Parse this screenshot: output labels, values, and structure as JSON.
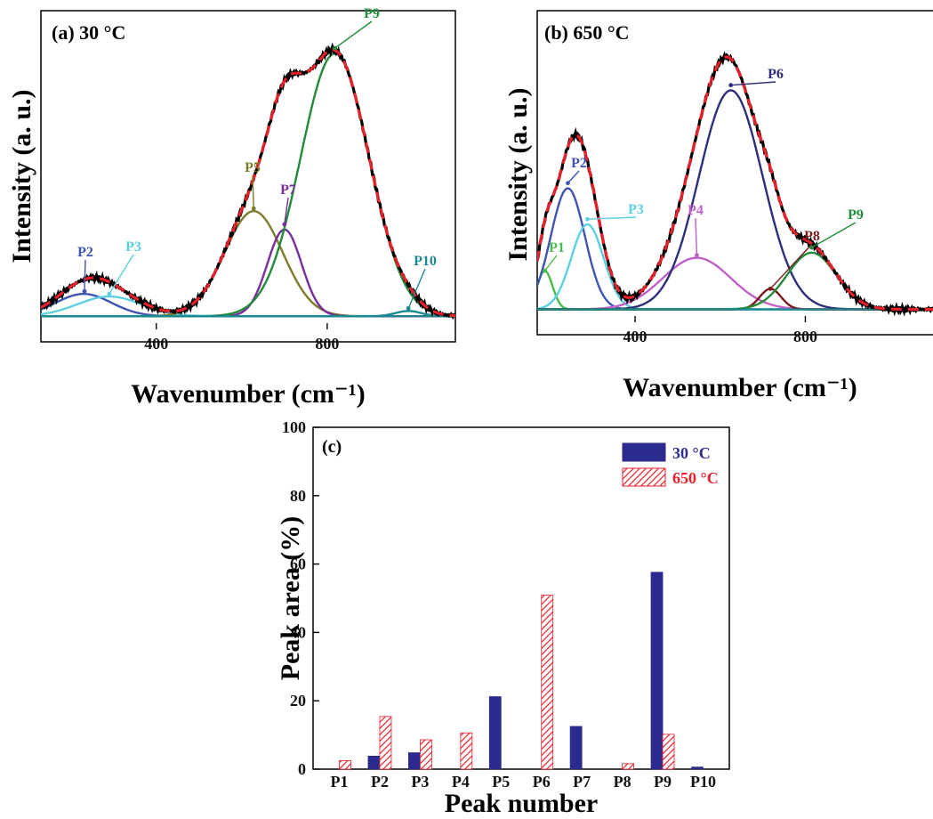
{
  "chart_data": [
    {
      "type": "line",
      "panel_label": "(a) 30 °C",
      "xlabel": "Wavenumber (cm⁻¹)",
      "ylabel": "Intensity (a. u.)",
      "xlim": [
        130,
        1100
      ],
      "ylim": [
        -0.05,
        1.0
      ],
      "xticks": [
        400,
        800
      ],
      "fit_color": "#e8202a",
      "data_color": "#000000",
      "peaks": [
        {
          "name": "P2",
          "center": 230,
          "height": 0.085,
          "width": 65,
          "color": "#3f55b5"
        },
        {
          "name": "P3",
          "center": 290,
          "height": 0.075,
          "width": 75,
          "color": "#5ccfe0"
        },
        {
          "name": "P5",
          "center": 628,
          "height": 0.4,
          "width": 68,
          "color": "#7d7a2a"
        },
        {
          "name": "P7",
          "center": 700,
          "height": 0.33,
          "width": 40,
          "color": "#7a2d9c"
        },
        {
          "name": "P9",
          "center": 818,
          "height": 1.0,
          "width": 80,
          "color": "#228b3a"
        },
        {
          "name": "P10",
          "center": 990,
          "height": 0.02,
          "width": 30,
          "color": "#1a8a90"
        }
      ]
    },
    {
      "type": "line",
      "panel_label": "(b) 650 °C",
      "xlabel": "Wavenumber (cm⁻¹)",
      "ylabel": "Intensity (a. u.)",
      "xlim": [
        170,
        1100
      ],
      "ylim": [
        -0.05,
        1.0
      ],
      "xticks": [
        400,
        800
      ],
      "fit_color": "#e8202a",
      "data_color": "#000000",
      "peaks": [
        {
          "name": "P1",
          "center": 188,
          "height": 0.15,
          "width": 18,
          "color": "#4cbc4c"
        },
        {
          "name": "P2",
          "center": 242,
          "height": 0.47,
          "width": 40,
          "color": "#3f55b5"
        },
        {
          "name": "P3",
          "center": 288,
          "height": 0.33,
          "width": 38,
          "color": "#5ccfe0"
        },
        {
          "name": "P4",
          "center": 545,
          "height": 0.2,
          "width": 80,
          "color": "#c060c8"
        },
        {
          "name": "P6",
          "center": 625,
          "height": 0.85,
          "width": 75,
          "color": "#2d2f7a"
        },
        {
          "name": "P8",
          "center": 718,
          "height": 0.08,
          "width": 25,
          "color": "#7a1a1a"
        },
        {
          "name": "P9",
          "center": 815,
          "height": 0.22,
          "width": 58,
          "color": "#228b3a"
        }
      ]
    },
    {
      "type": "bar",
      "panel_label": "(c)",
      "xlabel": "Peak number",
      "ylabel": "Peak area (%)",
      "ylim": [
        0,
        100
      ],
      "yticks": [
        0,
        20,
        40,
        60,
        80,
        100
      ],
      "categories": [
        "P1",
        "P2",
        "P3",
        "P4",
        "P5",
        "P6",
        "P7",
        "P8",
        "P9",
        "P10"
      ],
      "series": [
        {
          "name": "30 °C",
          "color": "#2b2b8f",
          "values": [
            0,
            3.8,
            4.8,
            0,
            21.2,
            0,
            12.5,
            0,
            57.6,
            0.6
          ]
        },
        {
          "name": "650 °C",
          "color": "#e8202a",
          "values": [
            2.5,
            15.4,
            8.6,
            10.6,
            0,
            50.9,
            0,
            1.6,
            10.2,
            0
          ]
        }
      ],
      "legend_position": "top-right"
    }
  ]
}
